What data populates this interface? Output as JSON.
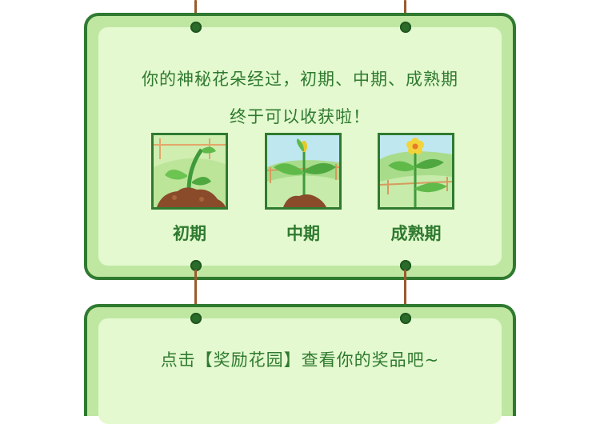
{
  "card_top": {
    "line1": "你的神秘花朵经过，初期、中期、成熟期",
    "line2": "终于可以收获啦！",
    "stages": [
      {
        "label": "初期",
        "icon": "sprout-icon"
      },
      {
        "label": "中期",
        "icon": "growing-plant-icon"
      },
      {
        "label": "成熟期",
        "icon": "flowering-plant-icon"
      }
    ]
  },
  "card_bottom": {
    "text": "点击【奖励花园】查看你的奖品吧~"
  },
  "colors": {
    "frame": "#2f7a30",
    "frame_fill": "#bfe7a2",
    "panel": "#e4f9cf",
    "rope": "#9a5a2e",
    "text": "#2f7a30"
  }
}
